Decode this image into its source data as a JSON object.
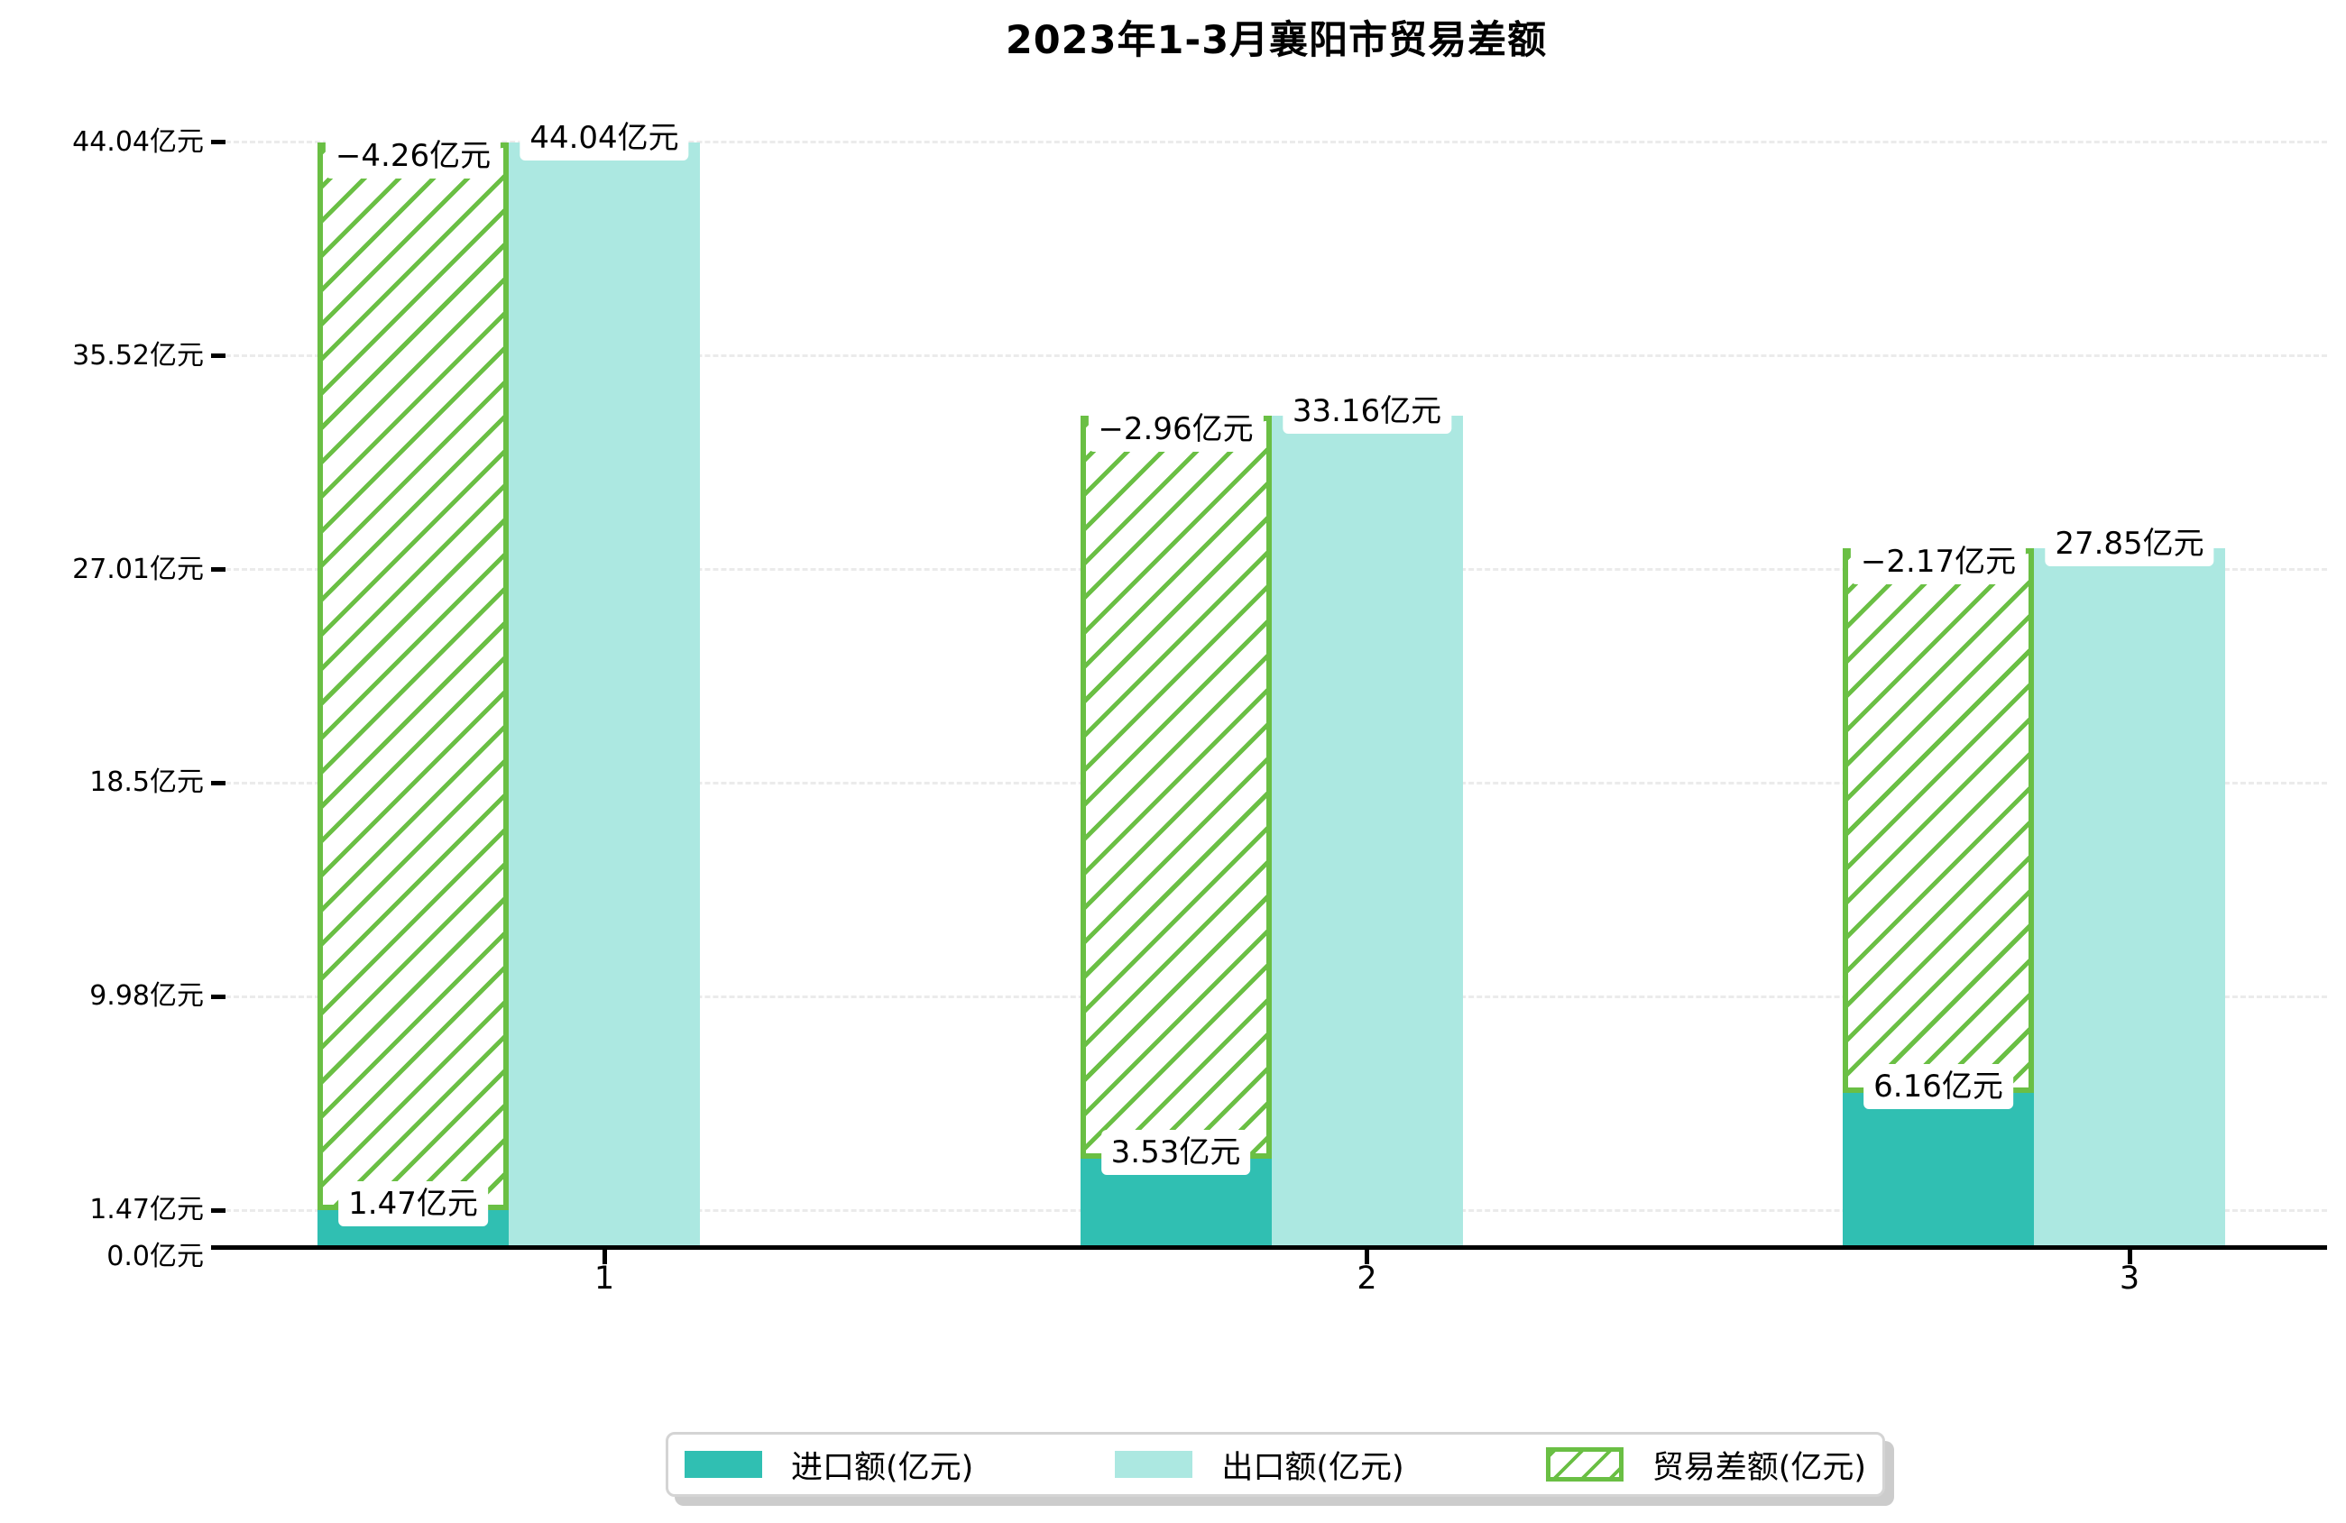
{
  "title": "2023年1-3月襄阳市贸易差额",
  "chart_data": {
    "type": "bar",
    "title": "2023年1-3月襄阳市贸易差额",
    "categories": [
      "1",
      "2",
      "3"
    ],
    "series": [
      {
        "name": "进口额(亿元)",
        "values": [
          1.47,
          3.53,
          6.16
        ],
        "color": "#30bfb2",
        "style": "solid"
      },
      {
        "name": "出口额(亿元)",
        "values": [
          44.04,
          33.16,
          27.85
        ],
        "color": "#ace8e1",
        "style": "solid"
      },
      {
        "name": "贸易差额(亿元)",
        "values": [
          -4.26,
          -2.96,
          -2.17
        ],
        "color": "#6abf44",
        "style": "hatched"
      }
    ],
    "bar_labels": {
      "import": [
        "1.47亿元",
        "3.53亿元",
        "6.16亿元"
      ],
      "export": [
        "44.04亿元",
        "33.16亿元",
        "27.85亿元"
      ],
      "balance": [
        "−4.26亿元",
        "−2.96亿元",
        "−2.17亿元"
      ]
    },
    "y_ticks": [
      {
        "label": "0.0亿元",
        "value": 0.0
      },
      {
        "label": "1.47亿元",
        "value": 1.47
      },
      {
        "label": "9.98亿元",
        "value": 9.98
      },
      {
        "label": "18.5亿元",
        "value": 18.5
      },
      {
        "label": "27.01亿元",
        "value": 27.01
      },
      {
        "label": "35.52亿元",
        "value": 35.52
      },
      {
        "label": "44.04亿元",
        "value": 44.04
      }
    ],
    "ylim": [
      0,
      46.8
    ],
    "grid": "horizontal dashed",
    "legend_position": "bottom-center"
  },
  "colors": {
    "import": "#30bfb2",
    "export": "#ace8e1",
    "balance_hatch": "#6abf44",
    "gridline": "#ebebeb",
    "axis": "#000000",
    "label_box": "#ffffff",
    "legend_border": "#d4d4d4",
    "legend_shadow": "#cccccc"
  }
}
